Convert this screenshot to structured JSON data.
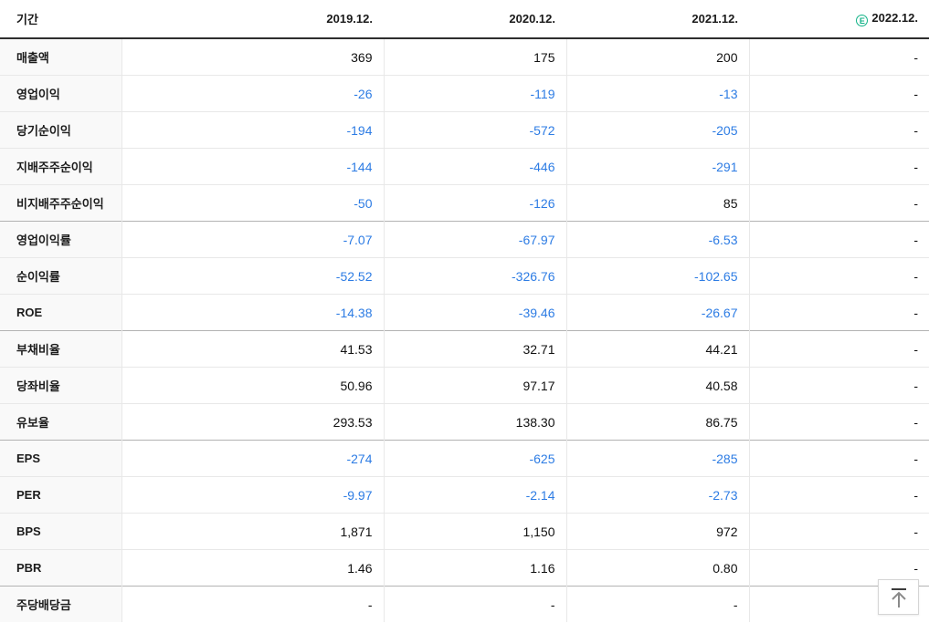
{
  "header": {
    "period_label": "기간",
    "columns": [
      "2019.12.",
      "2020.12.",
      "2021.12.",
      "2022.12."
    ],
    "estimate_badge": "E",
    "estimate_column_index": 3
  },
  "colors": {
    "negative_value": "#2d7ce4",
    "positive_value": "#111111",
    "estimate_green": "#10b286",
    "label_cell_bg": "#f9f9f9",
    "header_border": "#2e2e2e",
    "row_border": "#e8e8e8",
    "group_border": "#b3b3b3"
  },
  "rows": [
    {
      "label": "매출액",
      "values": [
        "369",
        "175",
        "200",
        "-"
      ],
      "group_start": false
    },
    {
      "label": "영업이익",
      "values": [
        "-26",
        "-119",
        "-13",
        "-"
      ],
      "group_start": false
    },
    {
      "label": "당기순이익",
      "values": [
        "-194",
        "-572",
        "-205",
        "-"
      ],
      "group_start": false
    },
    {
      "label": "지배주주순이익",
      "values": [
        "-144",
        "-446",
        "-291",
        "-"
      ],
      "group_start": false
    },
    {
      "label": "비지배주주순이익",
      "values": [
        "-50",
        "-126",
        "85",
        "-"
      ],
      "group_start": false
    },
    {
      "label": "영업이익률",
      "values": [
        "-7.07",
        "-67.97",
        "-6.53",
        "-"
      ],
      "group_start": true
    },
    {
      "label": "순이익률",
      "values": [
        "-52.52",
        "-326.76",
        "-102.65",
        "-"
      ],
      "group_start": false
    },
    {
      "label": "ROE",
      "values": [
        "-14.38",
        "-39.46",
        "-26.67",
        "-"
      ],
      "group_start": false
    },
    {
      "label": "부채비율",
      "values": [
        "41.53",
        "32.71",
        "44.21",
        "-"
      ],
      "group_start": true
    },
    {
      "label": "당좌비율",
      "values": [
        "50.96",
        "97.17",
        "40.58",
        "-"
      ],
      "group_start": false
    },
    {
      "label": "유보율",
      "values": [
        "293.53",
        "138.30",
        "86.75",
        "-"
      ],
      "group_start": false
    },
    {
      "label": "EPS",
      "values": [
        "-274",
        "-625",
        "-285",
        "-"
      ],
      "group_start": true
    },
    {
      "label": "PER",
      "values": [
        "-9.97",
        "-2.14",
        "-2.73",
        "-"
      ],
      "group_start": false
    },
    {
      "label": "BPS",
      "values": [
        "1,871",
        "1,150",
        "972",
        "-"
      ],
      "group_start": false
    },
    {
      "label": "PBR",
      "values": [
        "1.46",
        "1.16",
        "0.80",
        "-"
      ],
      "group_start": false
    },
    {
      "label": "주당배당금",
      "values": [
        "-",
        "-",
        "-",
        "-"
      ],
      "group_start": true
    }
  ],
  "scroll_top_button": {
    "icon": "arrow-up-to-top"
  }
}
